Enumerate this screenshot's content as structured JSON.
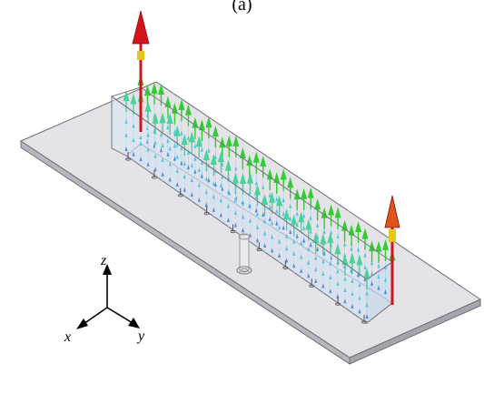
{
  "caption": "(a)",
  "axes": {
    "z_label": "z",
    "x_label": "x",
    "y_label": "y"
  },
  "colors": {
    "plate_top": "#e4e3e8",
    "plate_edge": "#b8b7bf",
    "plate_stroke": "#6f6e75",
    "strip_line": "#7a7982",
    "tall_arrow_shaft": "#d4141c",
    "tall_arrow_mid": "#e8c51c",
    "short_arrow_green": "#33cc33",
    "short_arrow_cyan": "#29bde0",
    "short_arrow_blue": "#2f6fe0",
    "feed_pin": "#9c9ba3"
  },
  "icons": [
    "tall-current-arrow",
    "field-arrow",
    "feed-pin",
    "axis-triad"
  ]
}
